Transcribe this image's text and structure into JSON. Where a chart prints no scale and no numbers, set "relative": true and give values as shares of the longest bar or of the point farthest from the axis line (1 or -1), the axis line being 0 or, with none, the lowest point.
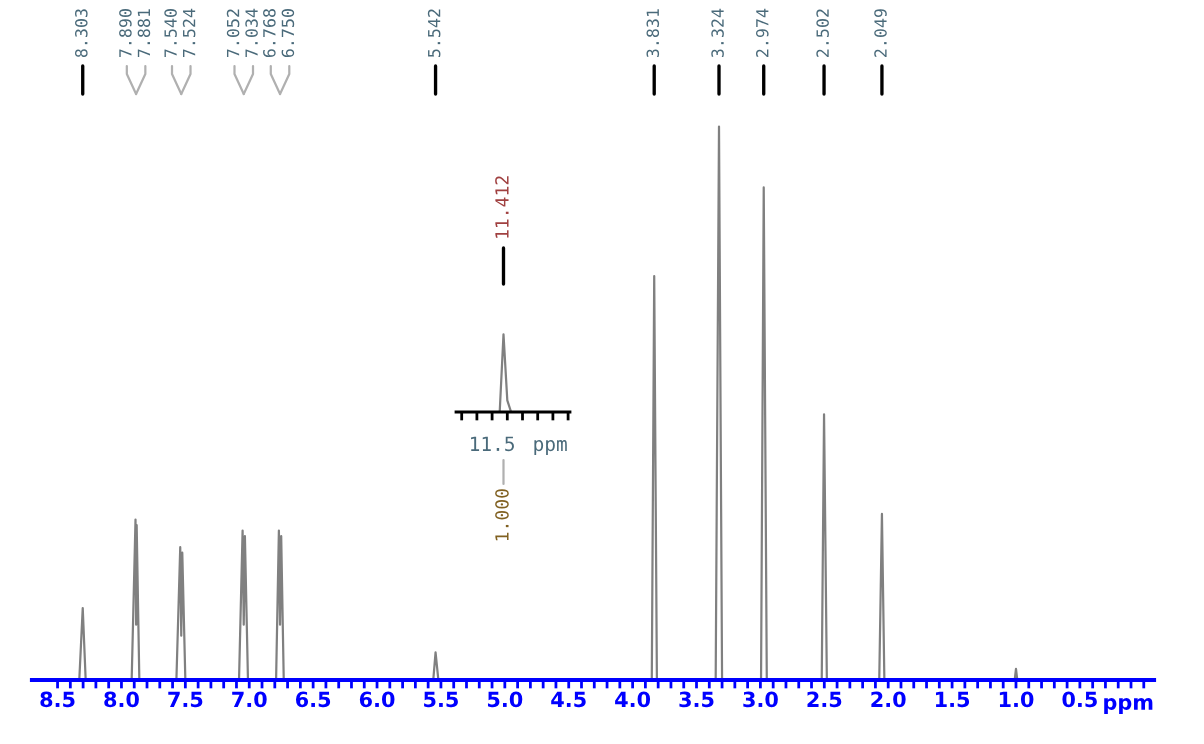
{
  "chart_data": [
    {
      "type": "line",
      "relative": true,
      "xlabel": "ppm",
      "xlim": [
        8.7,
        -0.08
      ],
      "xticks": [
        {
          "value": 8.5,
          "label": "8.5"
        },
        {
          "value": 8.4,
          "label": null
        },
        {
          "value": 8.3,
          "label": null
        },
        {
          "value": 8.2,
          "label": null
        },
        {
          "value": 8.1,
          "label": null
        },
        {
          "value": 8.0,
          "label": "8.0"
        },
        {
          "value": 7.9,
          "label": null
        },
        {
          "value": 7.8,
          "label": null
        },
        {
          "value": 7.7,
          "label": null
        },
        {
          "value": 7.6,
          "label": null
        },
        7.5,
        {
          "value": 7.4,
          "label": null
        },
        {
          "value": 7.3,
          "label": null
        },
        {
          "value": 7.2,
          "label": null
        },
        {
          "value": 7.1,
          "label": null
        },
        {
          "value": 7.0,
          "label": "7.0"
        },
        {
          "value": 6.9,
          "label": null
        },
        {
          "value": 6.8,
          "label": null
        },
        {
          "value": 6.7,
          "label": null
        },
        {
          "value": 6.6,
          "label": null
        },
        6.5,
        {
          "value": 6.4,
          "label": null
        },
        {
          "value": 6.3,
          "label": null
        },
        {
          "value": 6.2,
          "label": null
        },
        {
          "value": 6.1,
          "label": null
        },
        {
          "value": 6.0,
          "label": "6.0"
        },
        {
          "value": 5.9,
          "label": null
        },
        {
          "value": 5.8,
          "label": null
        },
        {
          "value": 5.7,
          "label": null
        },
        {
          "value": 5.6,
          "label": null
        },
        5.5,
        {
          "value": 5.4,
          "label": null
        },
        {
          "value": 5.3,
          "label": null
        },
        {
          "value": 5.2,
          "label": null
        },
        {
          "value": 5.1,
          "label": null
        },
        {
          "value": 5.0,
          "label": "5.0"
        },
        {
          "value": 4.9,
          "label": null
        },
        {
          "value": 4.8,
          "label": null
        },
        {
          "value": 4.7,
          "label": null
        },
        {
          "value": 4.6,
          "label": null
        },
        4.5,
        {
          "value": 4.4,
          "label": null
        },
        {
          "value": 4.3,
          "label": null
        },
        {
          "value": 4.2,
          "label": null
        },
        {
          "value": 4.1,
          "label": null
        },
        {
          "value": 4.0,
          "label": "4.0"
        },
        {
          "value": 3.9,
          "label": null
        },
        {
          "value": 3.8,
          "label": null
        },
        {
          "value": 3.7,
          "label": null
        },
        {
          "value": 3.6,
          "label": null
        },
        3.5,
        {
          "value": 3.4,
          "label": null
        },
        {
          "value": 3.3,
          "label": null
        },
        {
          "value": 3.2,
          "label": null
        },
        {
          "value": 3.1,
          "label": null
        },
        {
          "value": 3.0,
          "label": "3.0"
        },
        {
          "value": 2.9,
          "label": null
        },
        {
          "value": 2.8,
          "label": null
        },
        {
          "value": 2.7,
          "label": null
        },
        {
          "value": 2.6,
          "label": null
        },
        2.5,
        {
          "value": 2.4,
          "label": null
        },
        {
          "value": 2.3,
          "label": null
        },
        {
          "value": 2.2,
          "label": null
        },
        {
          "value": 2.1,
          "label": null
        },
        {
          "value": 2.0,
          "label": "2.0"
        },
        {
          "value": 1.9,
          "label": null
        },
        {
          "value": 1.8,
          "label": null
        },
        {
          "value": 1.7,
          "label": null
        },
        {
          "value": 1.6,
          "label": null
        },
        1.5,
        {
          "value": 1.4,
          "label": null
        },
        {
          "value": 1.3,
          "label": null
        },
        {
          "value": 1.2,
          "label": null
        },
        {
          "value": 1.1,
          "label": null
        },
        {
          "value": 1.0,
          "label": "1.0"
        },
        {
          "value": 0.9,
          "label": null
        },
        {
          "value": 0.8,
          "label": null
        },
        {
          "value": 0.7,
          "label": null
        },
        {
          "value": 0.6,
          "label": null
        },
        0.5,
        {
          "value": 0.4,
          "label": null
        },
        {
          "value": 0.3,
          "label": null
        },
        {
          "value": 0.2,
          "label": null
        },
        {
          "value": 0.1,
          "label": null
        },
        {
          "value": 0.0,
          "label": null
        }
      ],
      "x": [
        8.7,
        8.33,
        8.303,
        8.28,
        7.92,
        7.89,
        7.885,
        7.881,
        7.86,
        7.57,
        7.54,
        7.532,
        7.524,
        7.5,
        7.08,
        7.052,
        7.043,
        7.034,
        7.01,
        6.79,
        6.768,
        6.759,
        6.75,
        6.73,
        5.56,
        5.542,
        5.52,
        3.85,
        3.831,
        3.81,
        3.35,
        3.324,
        3.3,
        2.995,
        2.974,
        2.95,
        2.52,
        2.502,
        2.48,
        2.07,
        2.049,
        2.03,
        1.01,
        1.0,
        0.99,
        -0.08
      ],
      "series": [
        {
          "color": "#808080",
          "values": [
            0,
            0,
            0.13,
            0,
            0,
            0.29,
            0.1,
            0.28,
            0,
            0,
            0.24,
            0.08,
            0.23,
            0,
            0,
            0.27,
            0.1,
            0.26,
            0,
            0,
            0.27,
            0.1,
            0.26,
            0,
            0,
            0.05,
            0,
            0,
            0.73,
            0,
            0,
            1,
            0,
            0,
            0.89,
            0,
            0,
            0.48,
            0,
            0,
            0.3,
            0,
            0,
            0.02,
            0,
            0
          ]
        }
      ],
      "annotations": [
        {
          "text": "8.303",
          "x": 8.303
        },
        {
          "text": "7.890",
          "x": 7.89
        },
        {
          "text": "7.881",
          "x": 7.881
        },
        {
          "text": "7.540",
          "x": 7.54
        },
        {
          "text": "7.524",
          "x": 7.524
        },
        {
          "text": "7.052",
          "x": 7.052
        },
        {
          "text": "7.034",
          "x": 7.034
        },
        {
          "text": "6.768",
          "x": 6.768
        },
        {
          "text": "6.750",
          "x": 6.75
        },
        {
          "text": "5.542",
          "x": 5.542
        },
        {
          "text": "3.831",
          "x": 3.831
        },
        {
          "text": "3.324",
          "x": 3.324
        },
        {
          "text": "2.974",
          "x": 2.974
        },
        {
          "text": "2.502",
          "x": 2.502
        },
        {
          "text": "2.049",
          "x": 2.049
        }
      ]
    },
    {
      "type": "line",
      "relative": true,
      "xlabel": "ppm",
      "categories": [
        null,
        null,
        null,
        null,
        null,
        null,
        null,
        null,
        null,
        null,
        null,
        null,
        null,
        null,
        null,
        null,
        null,
        null,
        null,
        null,
        null,
        null,
        null,
        null,
        null,
        null,
        null,
        null,
        null,
        null
      ],
      "series": [
        {
          "color": "#808080",
          "values": [
            0,
            0,
            0,
            0,
            0,
            0,
            0,
            0,
            0,
            0,
            0,
            0,
            1,
            0.15,
            0,
            0,
            0,
            0,
            0,
            0,
            0,
            0,
            0,
            0,
            0,
            0,
            0,
            0,
            0,
            0
          ]
        }
      ],
      "annotations": [
        "11.412",
        "1.000",
        "11.5"
      ]
    }
  ]
}
